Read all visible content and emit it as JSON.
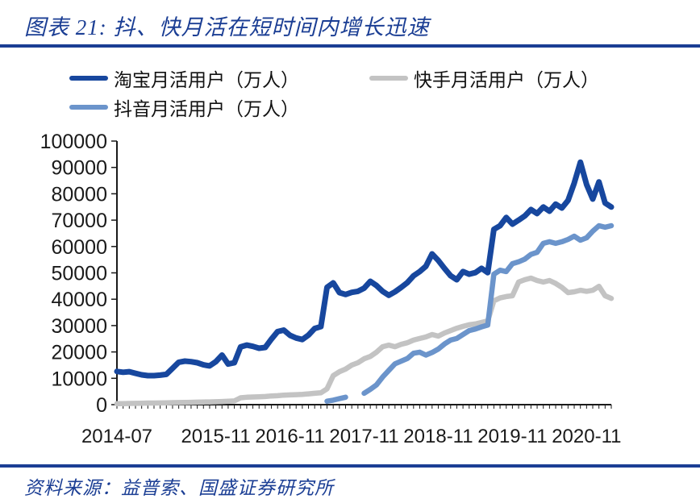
{
  "header": {
    "title": "图表 21:  抖、快月活在短时间内增长迅速"
  },
  "footer": {
    "source": "资料来源：益普索、国盛证券研究所"
  },
  "legend": {
    "items": [
      {
        "key": "taobao",
        "label": "淘宝月活用户（万人）",
        "color": "#17479E"
      },
      {
        "key": "kuaishou",
        "label": "快手月活用户（万人）",
        "color": "#C3C3C3"
      },
      {
        "key": "douyin",
        "label": "抖音月活用户（万人）",
        "color": "#6B94CB"
      }
    ]
  },
  "colors": {
    "accent_navy": "#1B3E94",
    "taobao_line": "#17479E",
    "douyin_line": "#6B94CB",
    "kuaishou_line": "#C3C3C3",
    "axis": "#1a1a1a"
  },
  "chart_data": {
    "type": "line",
    "title": "抖、快月活在短时间内增长迅速",
    "xlabel": "",
    "ylabel": "",
    "ylim": [
      0,
      100000
    ],
    "y_ticks": [
      0,
      10000,
      20000,
      30000,
      40000,
      50000,
      60000,
      70000,
      80000,
      90000,
      100000
    ],
    "grid": false,
    "legend_position": "top",
    "x_tick_labels": [
      "2014-07",
      "2015-11",
      "2016-11",
      "2017-11",
      "2018-11",
      "2019-11",
      "2020-11"
    ],
    "x_tick_indices": [
      0,
      16,
      28,
      40,
      52,
      64,
      76
    ],
    "x": [
      "2014-07",
      "2014-08",
      "2014-09",
      "2014-10",
      "2014-11",
      "2014-12",
      "2015-01",
      "2015-02",
      "2015-03",
      "2015-04",
      "2015-05",
      "2015-06",
      "2015-07",
      "2015-08",
      "2015-09",
      "2015-10",
      "2015-11",
      "2015-12",
      "2016-01",
      "2016-02",
      "2016-03",
      "2016-04",
      "2016-05",
      "2016-06",
      "2016-07",
      "2016-08",
      "2016-09",
      "2016-10",
      "2016-11",
      "2016-12",
      "2017-01",
      "2017-02",
      "2017-03",
      "2017-04",
      "2017-05",
      "2017-06",
      "2017-07",
      "2017-08",
      "2017-09",
      "2017-10",
      "2017-11",
      "2017-12",
      "2018-01",
      "2018-02",
      "2018-03",
      "2018-04",
      "2018-05",
      "2018-06",
      "2018-07",
      "2018-08",
      "2018-09",
      "2018-10",
      "2018-11",
      "2018-12",
      "2019-01",
      "2019-02",
      "2019-03",
      "2019-04",
      "2019-05",
      "2019-06",
      "2019-07",
      "2019-08",
      "2019-09",
      "2019-10",
      "2019-11",
      "2019-12",
      "2020-01",
      "2020-02",
      "2020-03",
      "2020-04",
      "2020-05",
      "2020-06",
      "2020-07",
      "2020-08",
      "2020-09",
      "2020-10",
      "2020-11",
      "2020-12",
      "2021-01",
      "2021-02",
      "2021-03"
    ],
    "series": [
      {
        "key": "taobao-mau",
        "name": "淘宝月活用户（万人）",
        "color": "#17479E",
        "stroke_width": 7,
        "values": [
          12600,
          12300,
          12500,
          11900,
          11300,
          11000,
          11000,
          11200,
          11500,
          13800,
          16100,
          16500,
          16300,
          15900,
          15100,
          14700,
          16300,
          18800,
          15400,
          15900,
          21900,
          22600,
          22100,
          21400,
          21700,
          24900,
          27700,
          28300,
          26300,
          25300,
          24700,
          26400,
          28900,
          29600,
          44500,
          46200,
          42500,
          41800,
          42600,
          43000,
          44200,
          46800,
          45200,
          43000,
          41500,
          42800,
          44500,
          46300,
          48900,
          50500,
          52500,
          57200,
          54700,
          51700,
          48900,
          47400,
          50500,
          49500,
          50100,
          51700,
          50100,
          66500,
          67900,
          71000,
          68500,
          70000,
          71600,
          74000,
          72500,
          75000,
          73400,
          76100,
          74600,
          77500,
          84000,
          92000,
          83500,
          78000,
          84500,
          76500,
          75000
        ]
      },
      {
        "key": "douyin-mau",
        "name": "抖音月活用户（万人）",
        "color": "#6B94CB",
        "stroke_width": 6.5,
        "values": [
          null,
          null,
          null,
          null,
          null,
          null,
          null,
          null,
          null,
          null,
          null,
          null,
          null,
          null,
          null,
          null,
          null,
          null,
          null,
          null,
          null,
          null,
          null,
          null,
          null,
          null,
          null,
          null,
          null,
          null,
          null,
          null,
          null,
          null,
          1300,
          1700,
          2300,
          2800,
          null,
          null,
          4300,
          5800,
          7500,
          10500,
          13000,
          15500,
          16500,
          17500,
          19500,
          19900,
          18800,
          19800,
          21100,
          23000,
          24500,
          25100,
          26600,
          28100,
          28700,
          29500,
          30200,
          49500,
          51000,
          50500,
          53500,
          54200,
          55200,
          57000,
          57800,
          61200,
          61800,
          61200,
          61800,
          62700,
          63900,
          62400,
          63300,
          65800,
          67900,
          67300,
          67900
        ]
      },
      {
        "key": "kuaishou-mau",
        "name": "快手月活用户（万人）",
        "color": "#C3C3C3",
        "stroke_width": 6.5,
        "values": [
          400,
          400,
          450,
          500,
          550,
          600,
          600,
          650,
          700,
          750,
          800,
          850,
          900,
          950,
          1000,
          1050,
          1100,
          1200,
          1300,
          1400,
          2600,
          2800,
          2900,
          3000,
          3100,
          3300,
          3400,
          3600,
          3700,
          3800,
          3900,
          4100,
          4300,
          4500,
          6000,
          11000,
          12500,
          13500,
          15000,
          15900,
          17400,
          18300,
          19900,
          22000,
          22600,
          22000,
          22900,
          23500,
          24500,
          25100,
          25700,
          26600,
          26000,
          27200,
          28100,
          29000,
          29700,
          30300,
          30600,
          31200,
          31800,
          39400,
          40500,
          41000,
          41300,
          46500,
          47400,
          48000,
          47100,
          46500,
          47100,
          46000,
          44500,
          42500,
          42800,
          43400,
          43000,
          43400,
          44900,
          41300,
          40300
        ]
      }
    ]
  }
}
